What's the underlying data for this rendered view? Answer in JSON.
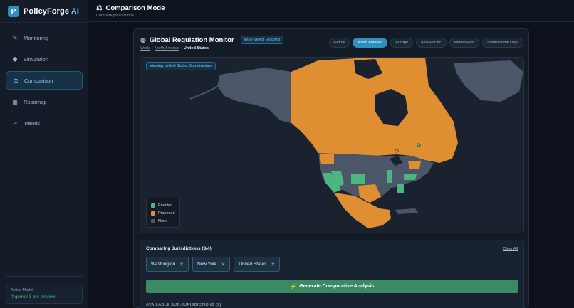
{
  "app": {
    "name": "PolicyForge",
    "name_suffix": "AI",
    "logo_letter": "P"
  },
  "sidebar": {
    "items": [
      {
        "label": "Monitoring",
        "icon": "ruler-pencil-icon",
        "glyph": "✎"
      },
      {
        "label": "Simulation",
        "icon": "cube-icon",
        "glyph": "⬢"
      },
      {
        "label": "Comparison",
        "icon": "scale-icon",
        "glyph": "⚖",
        "active": true
      },
      {
        "label": "Roadmap",
        "icon": "roadmap-icon",
        "glyph": "▦"
      },
      {
        "label": "Trends",
        "icon": "chart-icon",
        "glyph": "↗"
      }
    ],
    "model_label": "Active Model",
    "model_value": "gemini-3-pro-preview",
    "model_glyph": "⚲"
  },
  "header": {
    "icon_glyph": "⚖",
    "title": "Comparison Mode",
    "subtitle": "Compare jurisdictions"
  },
  "monitor": {
    "globe_glyph": "◍",
    "title": "Global Regulation Monitor",
    "badge": "Multi-Select Enabled",
    "breadcrumb": {
      "world": "World",
      "sep": "›",
      "region": "North America",
      "current": "United States"
    },
    "tabs": [
      "Global",
      "North America",
      "Europe",
      "Asia Pacific",
      "Middle East",
      "International Orgs"
    ],
    "active_tab": "North America",
    "viewing": "Viewing United States Sub-divisions",
    "legend": [
      {
        "label": "Enacted",
        "color": "#4cb582"
      },
      {
        "label": "Proposed",
        "color": "#e08e32"
      },
      {
        "label": "None",
        "color": "#4b5668"
      }
    ]
  },
  "compare": {
    "title": "Comparing Jurisdictions (3/4)",
    "clear_all": "Clear All",
    "selected": [
      "Washington",
      "New York",
      "United States"
    ],
    "remove_glyph": "✕",
    "generate_glyph": "⚡",
    "generate_label": "Generate Comparative Analysis",
    "available_label": "AVAILABLE SUB-JURISDICTIONS (9)"
  },
  "colors": {
    "accent": "#2f8fbf",
    "enacted": "#4cb582",
    "proposed": "#e08e32",
    "none": "#4b5668"
  }
}
